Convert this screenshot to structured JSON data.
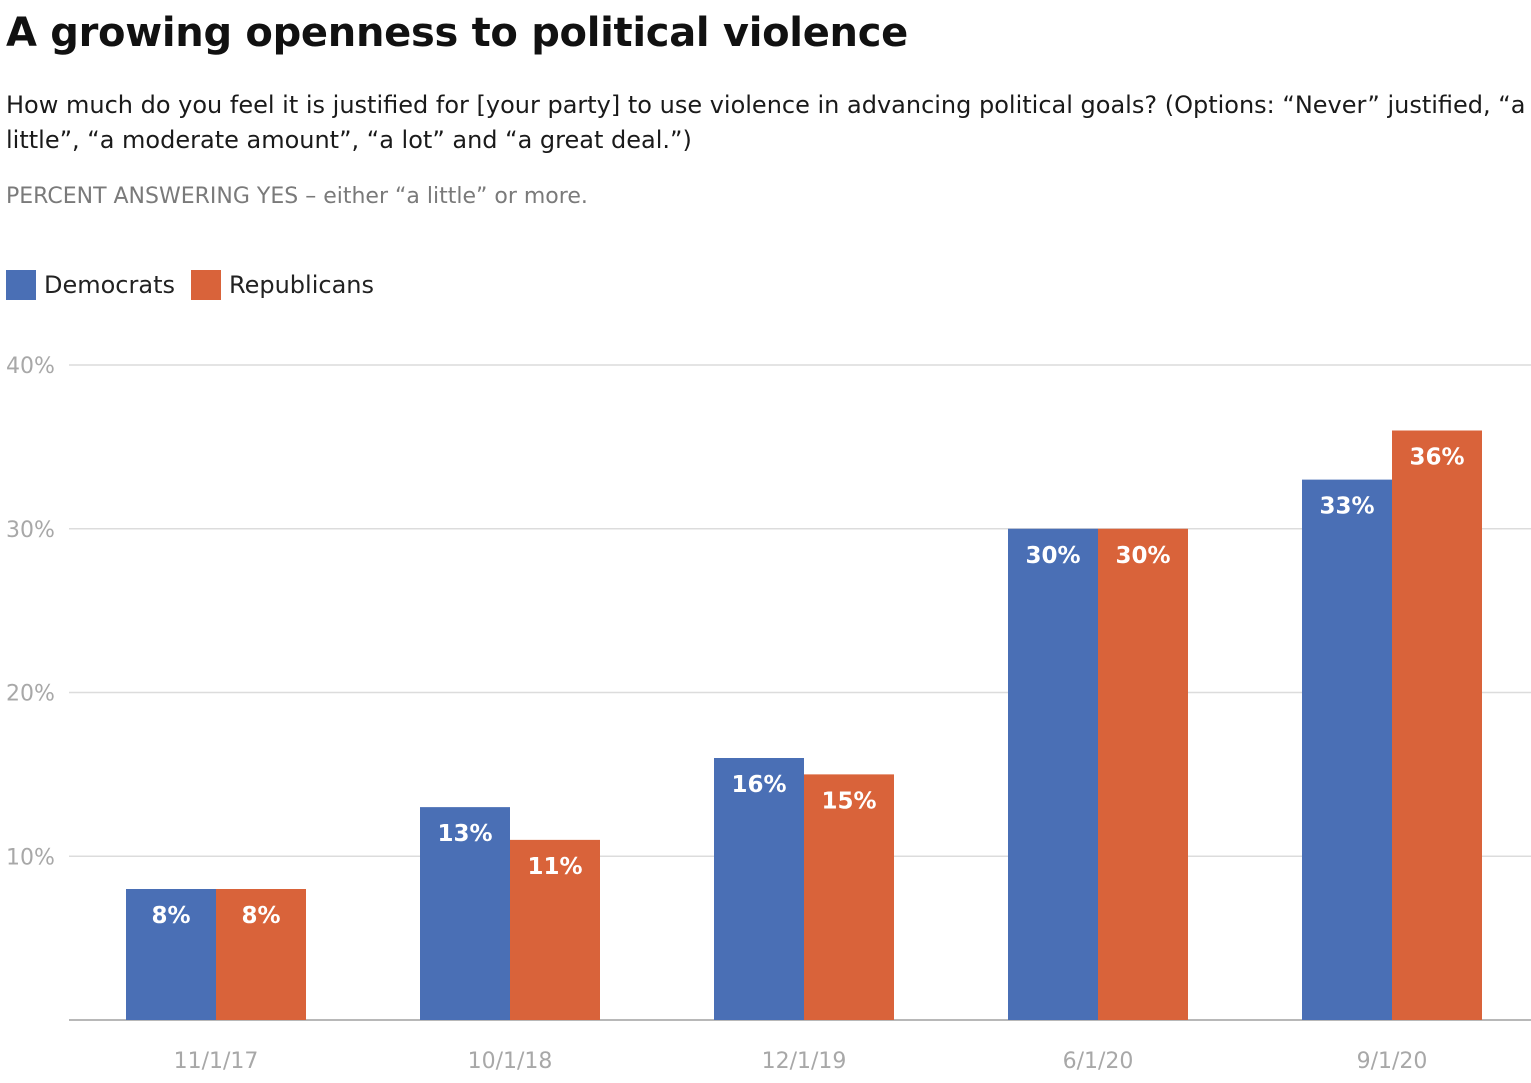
{
  "chart_data": {
    "type": "bar",
    "title": "A growing openness to political violence",
    "subtitle": "How much do you feel it is justified for [your party] to use violence in advancing political goals? (Options: “Never” justified, “a little”, “a moderate amount”, “a lot” and “a great deal.”)",
    "note": "PERCENT ANSWERING YES – either “a little” or more.",
    "categories": [
      "11/1/17",
      "10/1/18",
      "12/1/19",
      "6/1/20",
      "9/1/20"
    ],
    "series": [
      {
        "name": "Democrats",
        "color": "#4a6fb5",
        "values": [
          8,
          13,
          16,
          30,
          33
        ]
      },
      {
        "name": "Republicans",
        "color": "#d9633a",
        "values": [
          8,
          11,
          15,
          30,
          36
        ]
      }
    ],
    "value_labels": [
      [
        "8%",
        "13%",
        "16%",
        "30%",
        "33%"
      ],
      [
        "8%",
        "11%",
        "15%",
        "30%",
        "36%"
      ]
    ],
    "ylim": [
      0,
      40
    ],
    "yticks": [
      "",
      "10%",
      "20%",
      "30%",
      "40%"
    ],
    "xlabel": "",
    "ylabel": "",
    "grid": true,
    "legend_position": "top-left"
  }
}
